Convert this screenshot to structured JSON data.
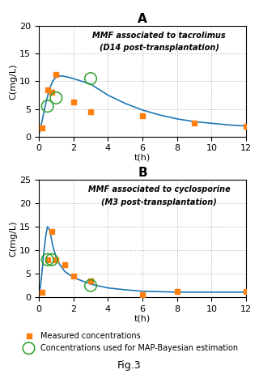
{
  "chart_data": [
    {
      "type": "line",
      "title": "A",
      "annotations": [
        "MMF associated to tacrolimus",
        "(D14 post-transplantation)"
      ],
      "x_label": "t(h)",
      "y_label": "C(mg/L)",
      "xlim": [
        0,
        12
      ],
      "xticks": [
        0,
        2,
        4,
        6,
        8,
        10,
        12
      ],
      "ylim": [
        0,
        20
      ],
      "yticks": [
        0,
        5,
        10,
        15,
        20
      ],
      "grid": true,
      "series": [
        {
          "type": "line",
          "line_style": "solid",
          "x": [
            0.0,
            0.2,
            0.4,
            0.6,
            0.8,
            1.0,
            1.2,
            1.5,
            2.0,
            2.5,
            3.0,
            4.0,
            5.0,
            6.0,
            7.0,
            8.0,
            9.0,
            10.0,
            11.0,
            12.0
          ],
          "values": [
            0.3,
            3.0,
            6.0,
            8.5,
            10.0,
            10.8,
            11.0,
            10.9,
            10.5,
            10.0,
            9.5,
            7.5,
            6.0,
            4.8,
            3.9,
            3.2,
            2.7,
            2.4,
            2.1,
            1.9
          ]
        },
        {
          "name": "Measured concentrations",
          "type": "scatter",
          "marker": "square",
          "x": [
            0.17,
            0.5,
            0.75,
            1.0,
            2.0,
            3.0,
            6.0,
            9.0,
            12.0
          ],
          "values": [
            1.5,
            8.5,
            8.0,
            11.2,
            6.2,
            4.5,
            3.8,
            2.5,
            1.8
          ]
        },
        {
          "name": "Concentrations used for MAP-Bayesian estimation",
          "type": "scatter",
          "marker": "open_circle",
          "x": [
            0.5,
            1.0,
            3.0
          ],
          "values": [
            5.5,
            7.0,
            10.5
          ]
        }
      ]
    },
    {
      "type": "line",
      "title": "B",
      "annotations": [
        "MMF associated to cyclosporine",
        "(M3 post-transplantation)"
      ],
      "x_label": "t(h)",
      "y_label": "C(mg/L)",
      "xlim": [
        0,
        12
      ],
      "xticks": [
        0,
        2,
        4,
        6,
        8,
        10,
        12
      ],
      "ylim": [
        0,
        25
      ],
      "yticks": [
        0,
        5,
        10,
        15,
        20,
        25
      ],
      "grid": true,
      "series": [
        {
          "type": "line",
          "line_style": "solid",
          "x": [
            0.0,
            0.1,
            0.2,
            0.3,
            0.4,
            0.5,
            0.6,
            0.7,
            0.8,
            1.0,
            1.2,
            1.5,
            2.0,
            2.5,
            3.0,
            4.0,
            5.0,
            6.0,
            7.0,
            8.0,
            9.0,
            10.0,
            11.0,
            12.0
          ],
          "values": [
            0.5,
            2.5,
            6.0,
            10.0,
            13.0,
            15.0,
            14.5,
            13.0,
            11.0,
            8.5,
            7.0,
            5.5,
            4.2,
            3.5,
            2.8,
            2.0,
            1.6,
            1.3,
            1.2,
            1.1,
            1.1,
            1.1,
            1.1,
            1.1
          ]
        },
        {
          "name": "Measured concentrations",
          "type": "scatter",
          "marker": "square",
          "x": [
            0.17,
            0.5,
            0.75,
            1.0,
            1.5,
            2.0,
            3.0,
            6.0,
            8.0,
            12.0
          ],
          "values": [
            1.0,
            8.0,
            14.0,
            8.0,
            7.0,
            4.5,
            3.5,
            0.5,
            1.2,
            1.2
          ]
        },
        {
          "name": "Concentrations used for MAP-Bayesian estimation",
          "type": "scatter",
          "marker": "open_circle",
          "x": [
            0.5,
            0.75,
            3.0
          ],
          "values": [
            8.0,
            8.0,
            2.5
          ]
        }
      ]
    }
  ],
  "legend": "lower center",
  "annotations": [
    "Fig.3"
  ]
}
